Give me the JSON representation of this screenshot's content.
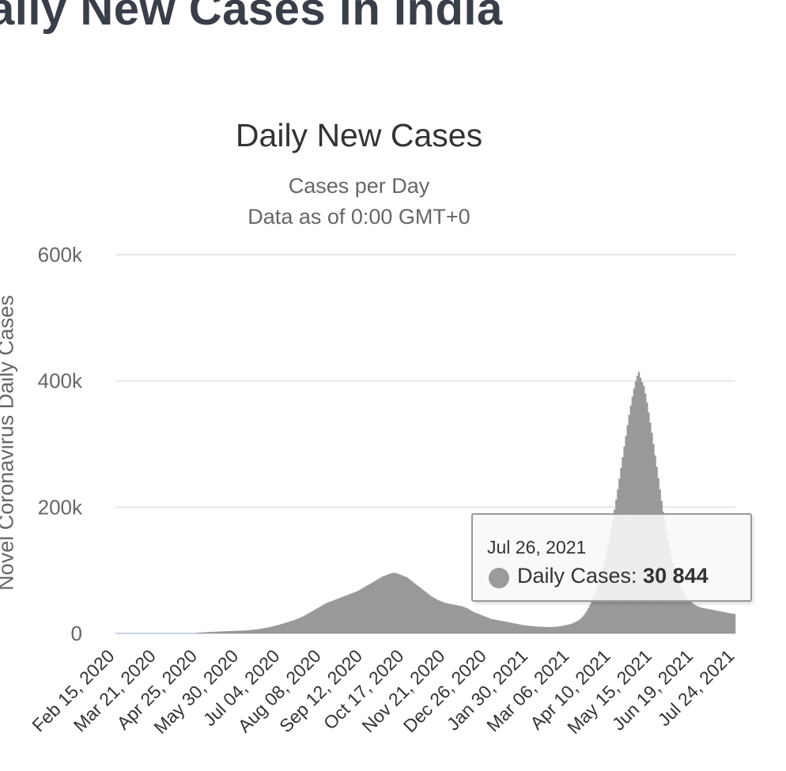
{
  "page": {
    "heading": "aily New Cases in India"
  },
  "tooltip": {
    "date": "Jul 26, 2021",
    "label": "Daily Cases: ",
    "value": "30 844"
  },
  "chart_data": {
    "type": "bar",
    "title": "Daily New Cases",
    "subtitle_lines": [
      "Cases per Day",
      "Data as of 0:00 GMT+0"
    ],
    "xlabel": "",
    "ylabel": "Novel Coronavirus Daily Cases",
    "ylim": [
      0,
      600000
    ],
    "yticks": [
      0,
      200000,
      400000,
      600000
    ],
    "ytick_labels": [
      "0",
      "200k",
      "400k",
      "600k"
    ],
    "x_tick_labels": [
      "Feb 15, 2020",
      "Mar 21, 2020",
      "Apr 25, 2020",
      "May 30, 2020",
      "Jul 04, 2020",
      "Aug 08, 2020",
      "Sep 12, 2020",
      "Oct 17, 2020",
      "Nov 21, 2020",
      "Dec 26, 2020",
      "Jan 30, 2021",
      "Mar 06, 2021",
      "Apr 10, 2021",
      "May 15, 2021",
      "Jun 19, 2021",
      "Jul 24, 2021"
    ],
    "grid": true,
    "legend": "none",
    "bar_color": "#999999",
    "series": [
      {
        "values": [
          0,
          0,
          0,
          0,
          0,
          0,
          0,
          0,
          0,
          0,
          0,
          0,
          0,
          0,
          0,
          0,
          0,
          0,
          0,
          0,
          0,
          0,
          0,
          0,
          0,
          0,
          0,
          0,
          0,
          0,
          0,
          0,
          0,
          0,
          0,
          0,
          0,
          0,
          0,
          0,
          0,
          0,
          0,
          0,
          0,
          0,
          0,
          0,
          0,
          0,
          1000,
          1200,
          1400,
          1600,
          1700,
          1800,
          2000,
          2200,
          2400,
          2500,
          2600,
          2700,
          2800,
          2900,
          3000,
          3200,
          3300,
          3400,
          3500,
          3600,
          3700,
          3800,
          3900,
          4000,
          4100,
          4200,
          4300,
          4400,
          4500,
          4600,
          4800,
          5000,
          5200,
          5400,
          5700,
          6000,
          6300,
          6600,
          7000,
          7400,
          7800,
          8300,
          8800,
          9300,
          9800,
          10400,
          11000,
          11600,
          12200,
          12900,
          13600,
          14300,
          15000,
          15800,
          16600,
          17400,
          18200,
          19000,
          19800,
          20600,
          21500,
          22500,
          23500,
          24600,
          25800,
          27000,
          28300,
          29600,
          31000,
          32500,
          34000,
          35500,
          37000,
          38500,
          40000,
          41500,
          43000,
          44500,
          46000,
          47500,
          48500,
          49500,
          50500,
          51500,
          52500,
          53500,
          54500,
          55500,
          56500,
          57500,
          58500,
          59500,
          60500,
          61500,
          62500,
          63500,
          64500,
          65500,
          66500,
          67500,
          69000,
          70500,
          72000,
          73500,
          75000,
          76500,
          78000,
          79500,
          81000,
          82500,
          84000,
          85500,
          87000,
          88500,
          90000,
          91000,
          92000,
          93000,
          94000,
          95000,
          95500,
          96000,
          95500,
          95000,
          94000,
          93000,
          92000,
          91000,
          90000,
          89000,
          87000,
          85000,
          83000,
          81000,
          79000,
          77000,
          75000,
          73000,
          71000,
          69000,
          67000,
          65000,
          63000,
          61000,
          59000,
          57500,
          56000,
          54500,
          53000,
          52000,
          51000,
          50000,
          49000,
          48000,
          47500,
          47000,
          46500,
          46000,
          45500,
          45000,
          44500,
          44000,
          43500,
          43000,
          42000,
          41000,
          40000,
          38500,
          37000,
          35500,
          34000,
          33000,
          32000,
          31000,
          30000,
          29000,
          28000,
          27000,
          26000,
          25000,
          24000,
          23000,
          22500,
          22000,
          21500,
          21000,
          20500,
          20000,
          19500,
          19000,
          18500,
          18000,
          17500,
          17000,
          16500,
          16000,
          15500,
          15000,
          14500,
          14000,
          13500,
          13000,
          12700,
          12400,
          12100,
          11800,
          11600,
          11400,
          11200,
          11000,
          10800,
          10600,
          10500,
          10400,
          10300,
          10200,
          10100,
          10000,
          10100,
          10200,
          10400,
          10600,
          10900,
          11200,
          11600,
          12000,
          12500,
          13000,
          13600,
          14200,
          15000,
          16000,
          17000,
          18200,
          19500,
          21000,
          23000,
          25500,
          28500,
          32000,
          36000,
          40500,
          45500,
          51000,
          57000,
          63500,
          70500,
          78000,
          86000,
          95000,
          105000,
          115000,
          126000,
          138000,
          151000,
          165000,
          180000,
          196000,
          212000,
          228000,
          245000,
          262000,
          279000,
          296000,
          313000,
          330000,
          346000,
          361000,
          375000,
          388000,
          399000,
          408000,
          414000,
          405000,
          398000,
          392000,
          380000,
          366000,
          350000,
          334000,
          318000,
          300000,
          282000,
          264000,
          246000,
          228000,
          210000,
          193000,
          177000,
          162000,
          148000,
          135000,
          123000,
          112000,
          102000,
          93000,
          85000,
          78000,
          72000,
          67000,
          62000,
          58000,
          55000,
          52000,
          50000,
          48000,
          46000,
          44500,
          43000,
          42000,
          41000,
          40500,
          40000,
          39500,
          39000,
          38500,
          38000,
          37500,
          37000,
          36500,
          36000,
          35500,
          35000,
          34500,
          34000,
          33500,
          33000,
          32500,
          32000,
          31600,
          31200,
          30844
        ]
      }
    ]
  }
}
